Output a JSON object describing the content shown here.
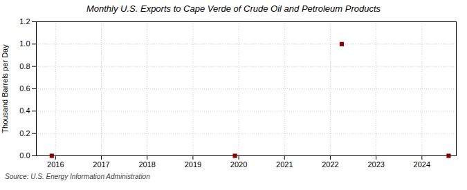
{
  "chart_data": {
    "type": "scatter",
    "title": "Monthly U.S. Exports to Cape Verde of Crude Oil and Petroleum Products",
    "ylabel": "Thousand Barrels per Day",
    "source": "Source: U.S. Energy Information Administration",
    "x": [
      2015.917,
      2019.917,
      2022.25,
      2024.583
    ],
    "values": [
      0.0,
      0.0,
      1.0,
      0.0
    ],
    "color": "#8b0000",
    "marker": "square",
    "xlim": [
      2015.58,
      2024.75
    ],
    "xticks": [
      2016,
      2017,
      2018,
      2019,
      2020,
      2021,
      2022,
      2023,
      2024
    ],
    "ylim": [
      0.0,
      1.2
    ],
    "yticks": [
      {
        "value": 0,
        "label": "0.0"
      },
      0.2,
      0.4,
      0.6,
      0.8,
      {
        "value": 1,
        "label": "1.0"
      },
      1.2
    ],
    "grid": true
  }
}
